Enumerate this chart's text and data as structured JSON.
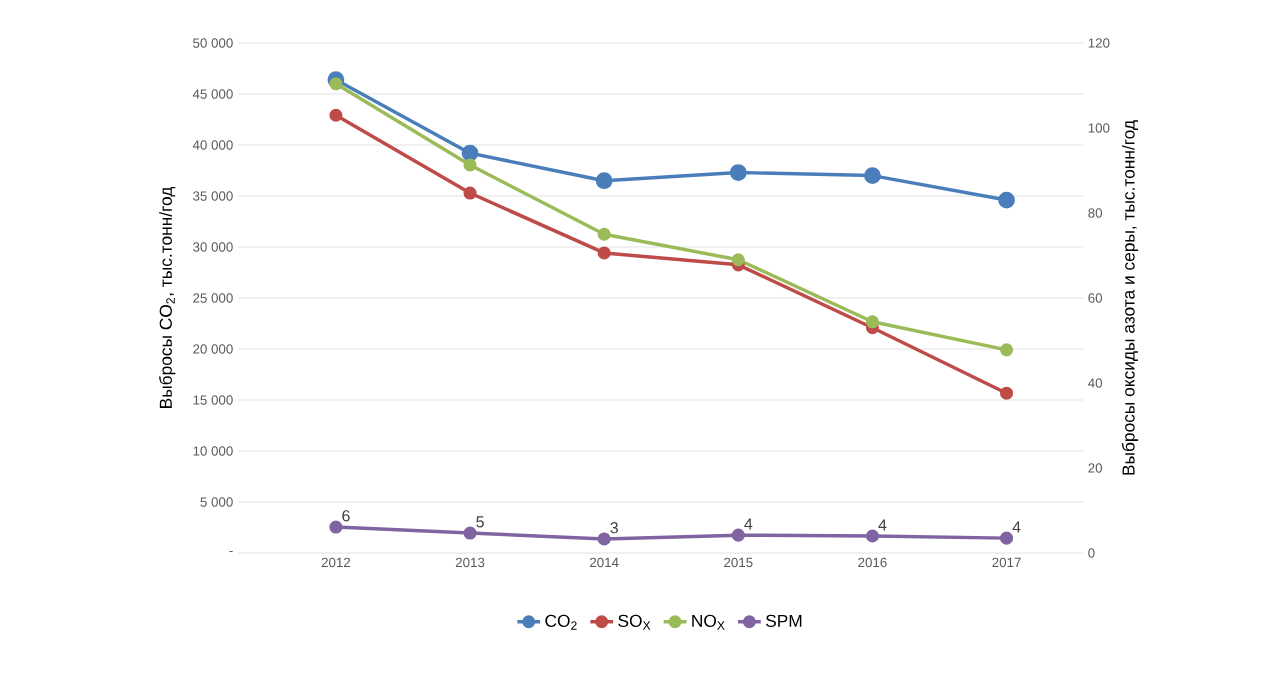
{
  "chart_data": {
    "type": "line",
    "categories": [
      "2012",
      "2013",
      "2014",
      "2015",
      "2016",
      "2017"
    ],
    "ylabel": "Выбросы  CO$_{2}$, тыс.тонн/год",
    "y2label": "Выбросы  оксиды азота и серы, тыс.тонн/год",
    "ylim": [
      0,
      50000
    ],
    "yticks": [
      {
        "value": 0,
        "label": "-"
      },
      {
        "value": 5000,
        "label": "5 000"
      },
      {
        "value": 10000,
        "label": "10 000"
      },
      {
        "value": 15000,
        "label": "15 000"
      },
      {
        "value": 20000,
        "label": "20 000"
      },
      {
        "value": 25000,
        "label": "25 000"
      },
      {
        "value": 30000,
        "label": "30 000"
      },
      {
        "value": 35000,
        "label": "35 000"
      },
      {
        "value": 40000,
        "label": "40 000"
      },
      {
        "value": 45000,
        "label": "45 000"
      },
      {
        "value": 50000,
        "label": "50 000"
      }
    ],
    "y2lim": [
      0,
      120
    ],
    "y2ticks": [
      0,
      20,
      40,
      60,
      80,
      100,
      120
    ],
    "series": [
      {
        "name": "CO$_{2}$",
        "color": "#4a7ebb",
        "values": [
          46400,
          39200,
          36500,
          37300,
          37000,
          34600
        ]
      },
      {
        "name": "SO$_{X}$",
        "color": "#be4b48",
        "values": [
          103,
          84.7,
          70.6,
          67.8,
          53,
          37.6
        ],
        "axis": "y2"
      },
      {
        "name": "NO$_{X}$",
        "color": "#9bbb59",
        "values": [
          110.4,
          91.3,
          75,
          69,
          54.4,
          47.8
        ],
        "axis": "y2"
      },
      {
        "name": "SPM",
        "color": "#8064a2",
        "values": [
          6.1,
          4.7,
          3.3,
          4.2,
          4.0,
          3.5
        ],
        "axis": "y2",
        "value_labels": [
          "6",
          "5",
          "3",
          "4",
          "4",
          "4"
        ]
      }
    ],
    "grid": "y",
    "legend": "bottom",
    "marker": "circle",
    "line_style": "solid"
  }
}
